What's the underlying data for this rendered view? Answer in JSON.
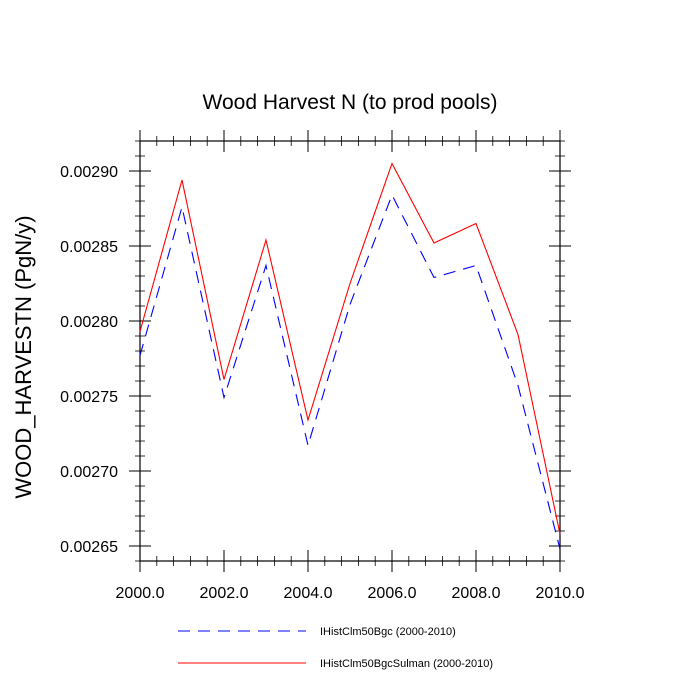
{
  "chart_data": {
    "type": "line",
    "title": "Wood Harvest N (to prod pools)",
    "xlabel": "",
    "ylabel": "WOOD_HARVESTN  (PgN/y)",
    "xlim": [
      2000,
      2010
    ],
    "ylim": [
      0.00264,
      0.00292
    ],
    "x_ticks": [
      "2000.0",
      "2002.0",
      "2004.0",
      "2006.0",
      "2008.0",
      "2010.0"
    ],
    "y_ticks": [
      "0.00265",
      "0.00270",
      "0.00275",
      "0.00280",
      "0.00285",
      "0.00290"
    ],
    "x": [
      2000,
      2001,
      2002,
      2003,
      2004,
      2005,
      2006,
      2007,
      2008,
      2009,
      2010
    ],
    "series": [
      {
        "name": "IHistClm50Bgc (2000-2010)",
        "color": "#0000ff",
        "dash": "dashed",
        "values": [
          0.002777,
          0.002876,
          0.002749,
          0.002837,
          0.002717,
          0.002811,
          0.002884,
          0.002829,
          0.002837,
          0.002757,
          0.002648
        ]
      },
      {
        "name": "IHistClm50BgcSulman (2000-2010)",
        "color": "#ff0000",
        "dash": "solid",
        "values": [
          0.002793,
          0.002894,
          0.002761,
          0.002854,
          0.002734,
          0.002825,
          0.002905,
          0.002852,
          0.002865,
          0.002791,
          0.002658
        ]
      }
    ],
    "grid": false,
    "legend_position": "bottom"
  }
}
